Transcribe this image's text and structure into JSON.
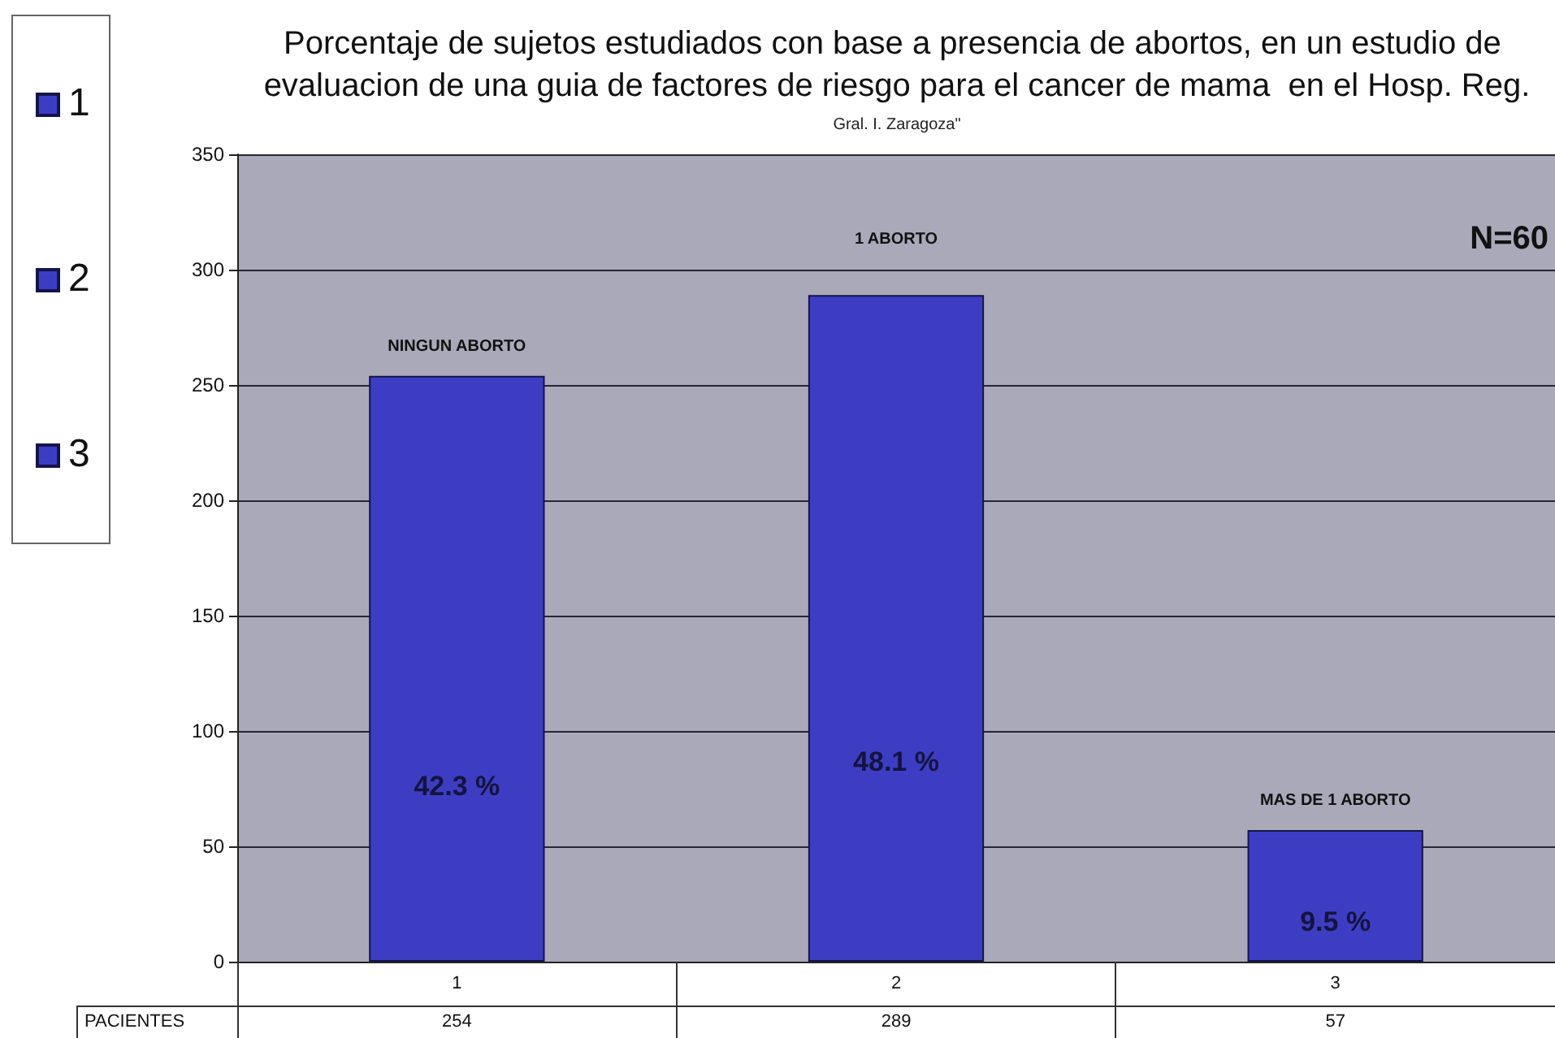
{
  "chart_data": {
    "type": "bar",
    "title": "Porcentaje de sujetos estudiados con base a presencia de abortos, en un estudio de evaluacion de una guia de factores de riesgo para el cancer de mama  en el Hosp. Reg.",
    "subtitle": "Gral. I. Zaragoza\"",
    "categories": [
      "1",
      "2",
      "3"
    ],
    "series": [
      {
        "name": "PACIENTES",
        "colors": [
          "#3d3dc4",
          "#3d3dc4",
          "#3d3dc4"
        ],
        "values": [
          254,
          289,
          57
        ]
      }
    ],
    "ylim": [
      0,
      350
    ],
    "yticks": [
      0,
      50,
      100,
      150,
      200,
      250,
      300,
      350
    ],
    "grid": "y",
    "legend": "left",
    "data_labels": true,
    "annotations": [
      {
        "text": "NINGUN ABORTO",
        "x": "1",
        "y": 254
      },
      {
        "text": "1 ABORTO",
        "x": "2",
        "y": 289
      },
      {
        "text": "MAS DE 1 ABORTO",
        "x": "3",
        "y": 57
      },
      "42.3 %",
      "48.1 %",
      "9.5 %",
      "N=60"
    ]
  }
}
